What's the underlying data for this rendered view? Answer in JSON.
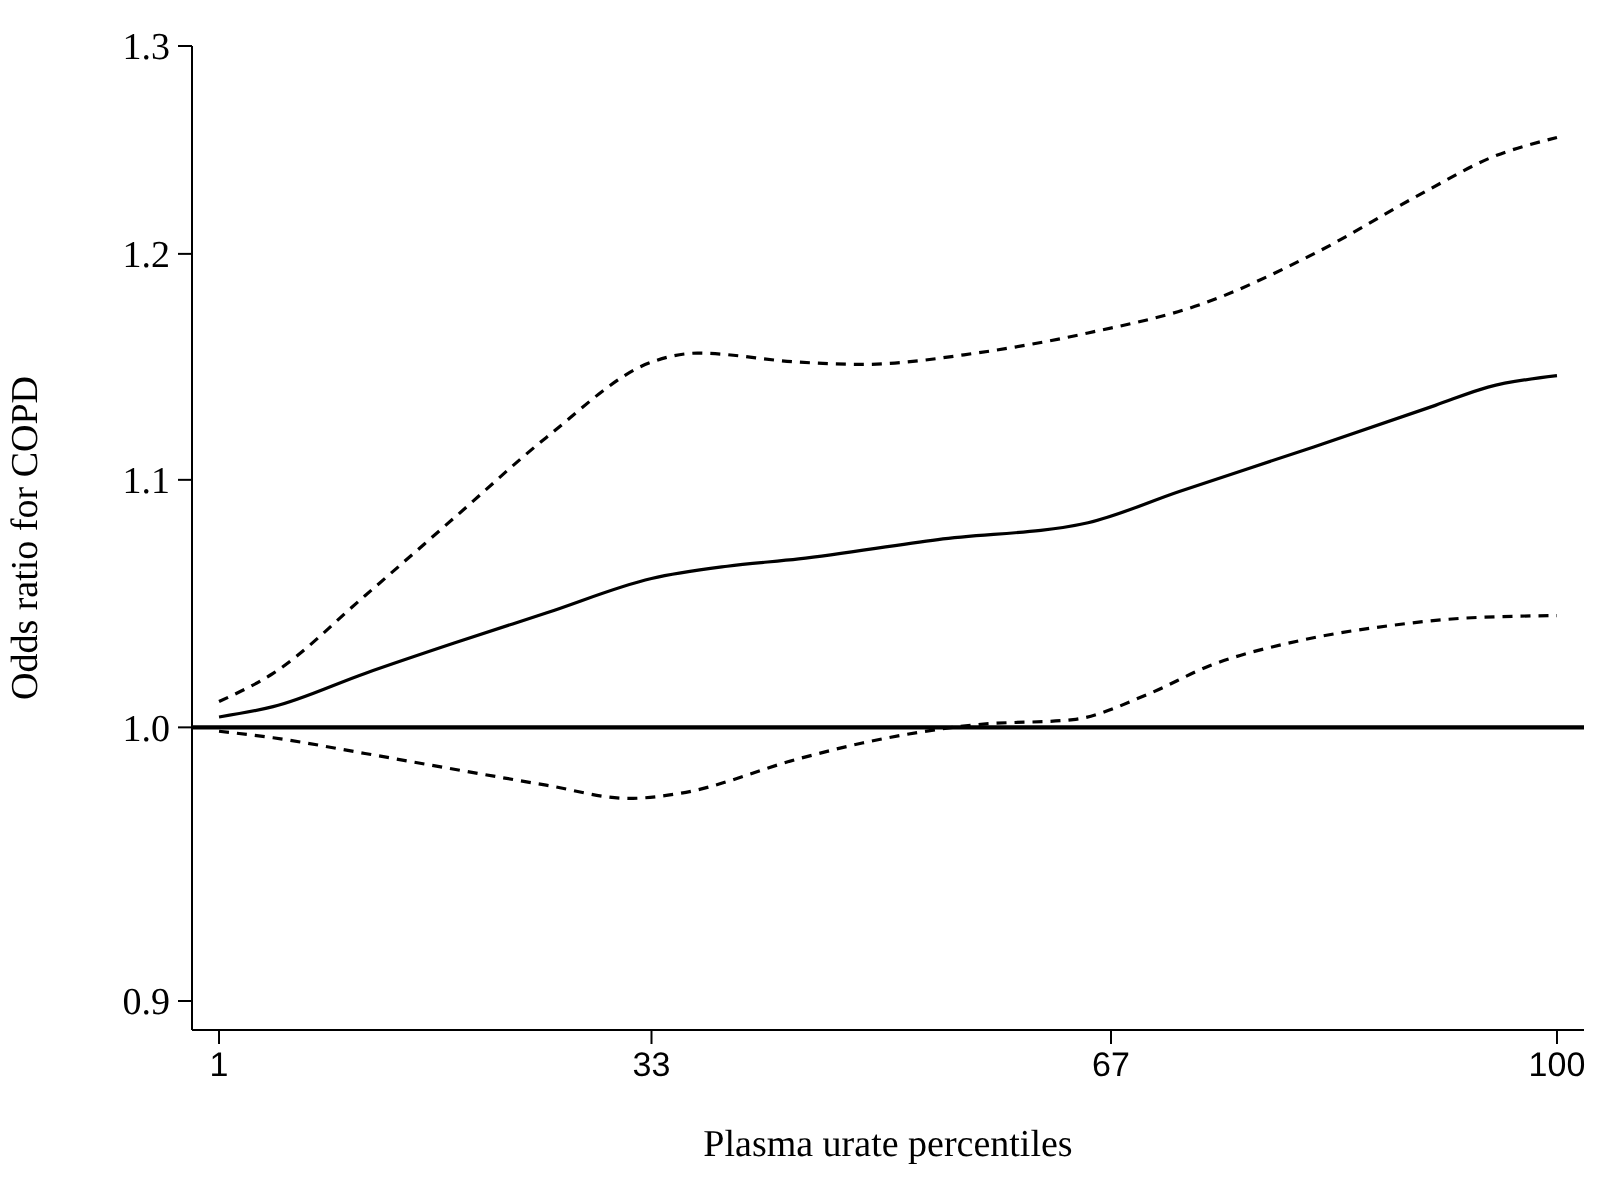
{
  "chart_data": {
    "type": "line",
    "xlabel": "Plasma urate percentiles",
    "ylabel": "Odds ratio for COPD",
    "log": "y",
    "xlim": [
      -1,
      102
    ],
    "xticks": [
      1,
      33,
      67,
      100
    ],
    "ylim": [
      0.89,
      1.3
    ],
    "yticks": [
      0.9,
      {
        "value": 1,
        "label": "1.0"
      },
      1.1,
      1.2,
      1.3
    ],
    "grid": false,
    "legend": false,
    "marker": "none",
    "series": [
      {
        "color": "#000000",
        "line_style": "solid",
        "x": [
          1,
          5,
          11.8,
          18.4,
          25.2,
          33,
          38.6,
          43.9,
          54.2,
          65.3,
          72,
          82,
          91,
          94.9,
          100
        ],
        "values": [
          1.004,
          1.008,
          1.021,
          1.033,
          1.045,
          1.059,
          1.064,
          1.067,
          1.075,
          1.082,
          1.095,
          1.114,
          1.132,
          1.14,
          1.145
        ]
      },
      {
        "color": "#000000",
        "line_style": "dashed",
        "x": [
          1,
          5,
          11.8,
          18.4,
          25.2,
          33,
          36.4,
          43.9,
          48.6,
          57,
          65.3,
          73.7,
          82,
          90.5,
          95,
          100
        ],
        "values": [
          1.01,
          1.021,
          1.052,
          1.084,
          1.118,
          1.151,
          1.155,
          1.151,
          1.15,
          1.155,
          1.164,
          1.177,
          1.2,
          1.23,
          1.245,
          1.255
        ]
      },
      {
        "color": "#000000",
        "line_style": "dashed",
        "x": [
          1,
          5,
          11.8,
          18.4,
          25.2,
          31.3,
          35.2,
          43.9,
          48.6,
          57,
          64.2,
          69.8,
          74.3,
          81,
          87.7,
          93.3,
          100
        ],
        "values": [
          0.9985,
          0.996,
          0.99,
          0.984,
          0.978,
          0.973,
          0.975,
          0.988,
          0.994,
          1.001,
          1.003,
          1.013,
          1.024,
          1.034,
          1.04,
          1.043,
          1.044
        ]
      }
    ],
    "ref_lines": [
      {
        "axis": "y",
        "value": 1.0,
        "color": "#000000",
        "line_style": "solid"
      }
    ]
  }
}
